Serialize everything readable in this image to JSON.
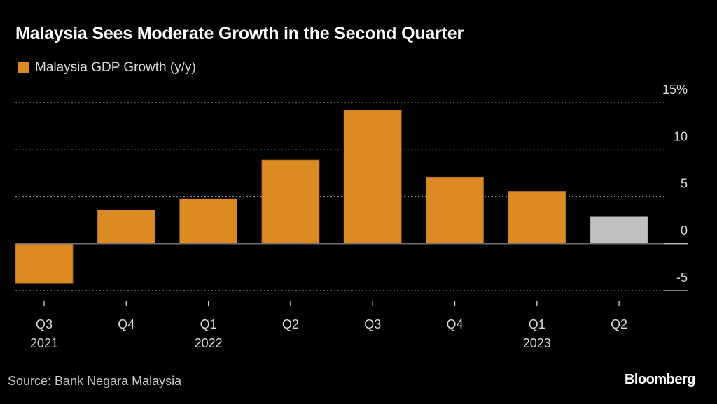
{
  "chart_data": {
    "type": "bar",
    "title": "Malaysia Sees Moderate Growth in the Second Quarter",
    "legend": [
      {
        "label": "Malaysia GDP Growth (y/y)",
        "color": "#dc8a23"
      }
    ],
    "legend_position": "top-left",
    "categories": [
      "Q3 2021",
      "Q4 2021",
      "Q1 2022",
      "Q2 2022",
      "Q3 2022",
      "Q4 2022",
      "Q1 2023",
      "Q2 2023"
    ],
    "x_tick_labels": [
      {
        "quarter": "Q3",
        "year": "2021"
      },
      {
        "quarter": "Q4",
        "year": ""
      },
      {
        "quarter": "Q1",
        "year": "2022"
      },
      {
        "quarter": "Q2",
        "year": ""
      },
      {
        "quarter": "Q3",
        "year": ""
      },
      {
        "quarter": "Q4",
        "year": ""
      },
      {
        "quarter": "Q1",
        "year": "2023"
      },
      {
        "quarter": "Q2",
        "year": ""
      }
    ],
    "series": [
      {
        "name": "Malaysia GDP Growth (y/y)",
        "values": [
          -4.2,
          3.6,
          4.8,
          8.9,
          14.2,
          7.1,
          5.6,
          2.9
        ]
      }
    ],
    "bar_colors": [
      "#dc8a23",
      "#dc8a23",
      "#dc8a23",
      "#dc8a23",
      "#dc8a23",
      "#dc8a23",
      "#dc8a23",
      "#c0c0c0"
    ],
    "highlight_note": "Latest quarter shown in gray",
    "ylim": [
      -5,
      15
    ],
    "y_ticks": [
      15,
      10,
      5,
      0,
      -5
    ],
    "y_tick_labels": [
      "15%",
      "10",
      "5",
      "0",
      "-5"
    ],
    "y_axis_position": "right",
    "grid": true,
    "xlabel": "",
    "ylabel": ""
  },
  "footer": {
    "source": "Source: Bank Negara Malaysia",
    "brand": "Bloomberg"
  }
}
